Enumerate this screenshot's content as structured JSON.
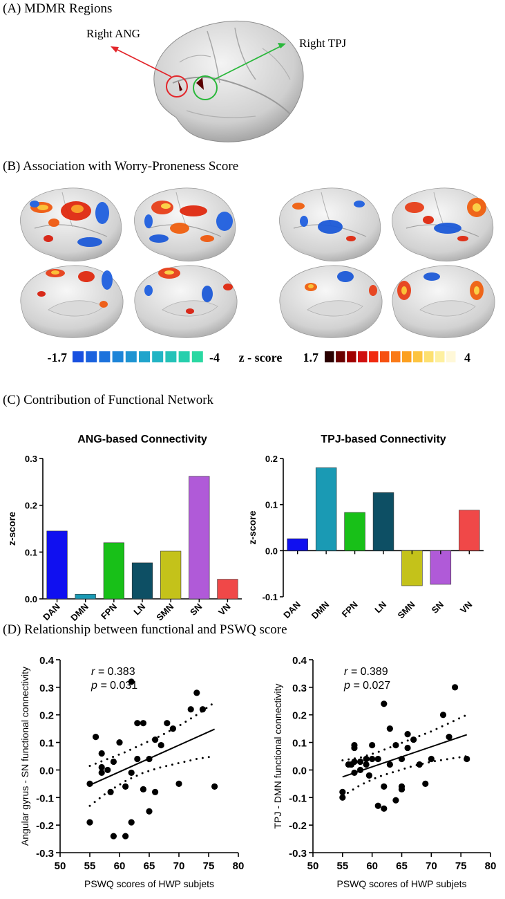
{
  "panels": {
    "A": {
      "title": "(A) MDMR Regions",
      "label_ang": "Right ANG",
      "label_tpj": "Right TPJ"
    },
    "B": {
      "title": "(B) Association with Worry-Proneness Score",
      "colorbar": {
        "neg_start": "-1.7",
        "neg_end": "-4",
        "center": "z - score",
        "pos_start": "1.7",
        "pos_end": "4"
      }
    },
    "C": {
      "title": "(C) Contribution of Functional Network"
    },
    "D": {
      "title": "(D) Relationship between functional and PSWQ score"
    }
  },
  "colors": {
    "DAN": "#1010f0",
    "DMN": "#1a9ab4",
    "FPN": "#18c018",
    "LN": "#0d4f64",
    "SMN": "#c4c21a",
    "SN": "#b05ad8",
    "VN": "#f04848",
    "blue_scale": [
      "#1850e0",
      "#1a62de",
      "#1c72dc",
      "#1c84d8",
      "#1e94d2",
      "#20a4cc",
      "#22b4c4",
      "#24c2b8",
      "#26cfad",
      "#2ad8a2"
    ],
    "hot_scale": [
      "#2a0000",
      "#6a0000",
      "#a00000",
      "#d01010",
      "#f02a10",
      "#f65010",
      "#fa7a18",
      "#fca020",
      "#fdc440",
      "#fde070",
      "#fef0a0",
      "#fff8d8"
    ]
  },
  "chart_data": [
    {
      "type": "bar",
      "title": "ANG-based Connectivity",
      "ylabel": "z-score",
      "categories": [
        "DAN",
        "DMN",
        "FPN",
        "LN",
        "SMN",
        "SN",
        "VN"
      ],
      "values": [
        0.145,
        0.01,
        0.12,
        0.077,
        0.102,
        0.262,
        0.042
      ],
      "ylim": [
        0,
        0.3
      ],
      "yticks": [
        "0.0",
        "0.1",
        "0.2",
        "0.3"
      ],
      "ytick_values": [
        0,
        0.1,
        0.2,
        0.3
      ]
    },
    {
      "type": "bar",
      "title": "TPJ-based Connectivity",
      "ylabel": "z-score",
      "categories": [
        "DAN",
        "DMN",
        "FPN",
        "LN",
        "SMN",
        "SN",
        "VN"
      ],
      "values": [
        0.026,
        0.18,
        0.083,
        0.126,
        -0.076,
        -0.073,
        0.088
      ],
      "ylim": [
        -0.1,
        0.2
      ],
      "yticks": [
        "-0.1",
        "0.0",
        "0.1",
        "0.2"
      ],
      "ytick_values": [
        -0.1,
        0,
        0.1,
        0.2
      ]
    },
    {
      "type": "scatter",
      "xlabel": "PSWQ scores of HWP subjets",
      "ylabel": "Angular gyrus - SN functional connectivity",
      "r_label": "r = ",
      "r_value": "0.383",
      "p_label": "p = ",
      "p_value": "0.031",
      "xlim": [
        50,
        80
      ],
      "ylim": [
        -0.3,
        0.4
      ],
      "xticks": [
        "50",
        "55",
        "60",
        "65",
        "70",
        "75",
        "80"
      ],
      "xtick_values": [
        50,
        55,
        60,
        65,
        70,
        75,
        80
      ],
      "yticks": [
        "-0.3",
        "-0.2",
        "-0.1",
        "0.0",
        "0.1",
        "0.2",
        "0.3",
        "0.4"
      ],
      "ytick_values": [
        -0.3,
        -0.2,
        -0.1,
        0,
        0.1,
        0.2,
        0.3,
        0.4
      ],
      "fit": {
        "x": [
          55,
          76
        ],
        "y": [
          -0.055,
          0.148
        ]
      },
      "ci_upper": {
        "x": [
          55,
          58,
          61,
          64,
          67,
          70,
          73,
          76
        ],
        "y": [
          0.015,
          0.04,
          0.065,
          0.095,
          0.125,
          0.16,
          0.2,
          0.245
        ]
      },
      "ci_lower": {
        "x": [
          55,
          58,
          61,
          64,
          67,
          70,
          73,
          76
        ],
        "y": [
          -0.13,
          -0.08,
          -0.04,
          -0.01,
          0.01,
          0.025,
          0.04,
          0.05
        ]
      },
      "points": [
        [
          55,
          -0.19
        ],
        [
          55,
          -0.05
        ],
        [
          56,
          0.12
        ],
        [
          57,
          0.06
        ],
        [
          57,
          0.01
        ],
        [
          57,
          -0.01
        ],
        [
          58,
          0.0
        ],
        [
          58.5,
          -0.08
        ],
        [
          59,
          0.03
        ],
        [
          59,
          -0.24
        ],
        [
          60,
          0.1
        ],
        [
          61,
          -0.06
        ],
        [
          61,
          -0.24
        ],
        [
          62,
          0.32
        ],
        [
          62,
          -0.19
        ],
        [
          62,
          -0.01
        ],
        [
          63,
          0.04
        ],
        [
          63,
          0.17
        ],
        [
          64,
          0.17
        ],
        [
          64,
          -0.07
        ],
        [
          65,
          0.04
        ],
        [
          65,
          -0.15
        ],
        [
          66,
          0.11
        ],
        [
          66,
          -0.08
        ],
        [
          67,
          0.09
        ],
        [
          68,
          0.17
        ],
        [
          69,
          0.15
        ],
        [
          70,
          -0.05
        ],
        [
          72,
          0.22
        ],
        [
          73,
          0.28
        ],
        [
          74,
          0.22
        ],
        [
          76,
          -0.06
        ]
      ]
    },
    {
      "type": "scatter",
      "xlabel": "PSWQ scores of HWP subjets",
      "ylabel": "TPJ - DMN functional connectivity",
      "r_label": "r = ",
      "r_value": "0.389",
      "p_label": "p = ",
      "p_value": "0.027",
      "xlim": [
        50,
        80
      ],
      "ylim": [
        -0.3,
        0.4
      ],
      "xticks": [
        "50",
        "55",
        "60",
        "65",
        "70",
        "75",
        "80"
      ],
      "xtick_values": [
        50,
        55,
        60,
        65,
        70,
        75,
        80
      ],
      "yticks": [
        "-0.3",
        "-0.2",
        "-0.1",
        "0.0",
        "0.1",
        "0.2",
        "0.3",
        "0.4"
      ],
      "ytick_values": [
        -0.3,
        -0.2,
        -0.1,
        0,
        0.1,
        0.2,
        0.3,
        0.4
      ],
      "fit": {
        "x": [
          55,
          76
        ],
        "y": [
          -0.025,
          0.128
        ]
      },
      "ci_upper": {
        "x": [
          55,
          58,
          61,
          64,
          67,
          70,
          73,
          76
        ],
        "y": [
          0.035,
          0.045,
          0.065,
          0.09,
          0.115,
          0.14,
          0.17,
          0.2
        ]
      },
      "ci_lower": {
        "x": [
          55,
          58,
          61,
          64,
          67,
          70,
          73,
          76
        ],
        "y": [
          -0.095,
          -0.055,
          -0.025,
          -0.005,
          0.015,
          0.03,
          0.04,
          0.05
        ]
      },
      "points": [
        [
          55,
          -0.1
        ],
        [
          55,
          -0.08
        ],
        [
          56,
          0.02
        ],
        [
          56.5,
          0.02
        ],
        [
          57,
          0.09
        ],
        [
          57,
          0.08
        ],
        [
          57,
          0.03
        ],
        [
          57,
          -0.01
        ],
        [
          58,
          0.03
        ],
        [
          58,
          0.0
        ],
        [
          59,
          0.02
        ],
        [
          59,
          0.04
        ],
        [
          59.5,
          -0.02
        ],
        [
          60,
          0.09
        ],
        [
          60,
          0.04
        ],
        [
          61,
          0.04
        ],
        [
          61,
          -0.13
        ],
        [
          62,
          0.24
        ],
        [
          62,
          -0.06
        ],
        [
          62,
          -0.14
        ],
        [
          63,
          0.15
        ],
        [
          63,
          0.02
        ],
        [
          64,
          0.09
        ],
        [
          64,
          -0.11
        ],
        [
          65,
          0.04
        ],
        [
          65,
          -0.06
        ],
        [
          65,
          -0.07
        ],
        [
          66,
          0.13
        ],
        [
          66,
          0.08
        ],
        [
          67,
          0.11
        ],
        [
          68,
          0.02
        ],
        [
          69,
          -0.05
        ],
        [
          70,
          0.04
        ],
        [
          72,
          0.2
        ],
        [
          73,
          0.12
        ],
        [
          74,
          0.3
        ],
        [
          76,
          0.04
        ]
      ]
    }
  ]
}
